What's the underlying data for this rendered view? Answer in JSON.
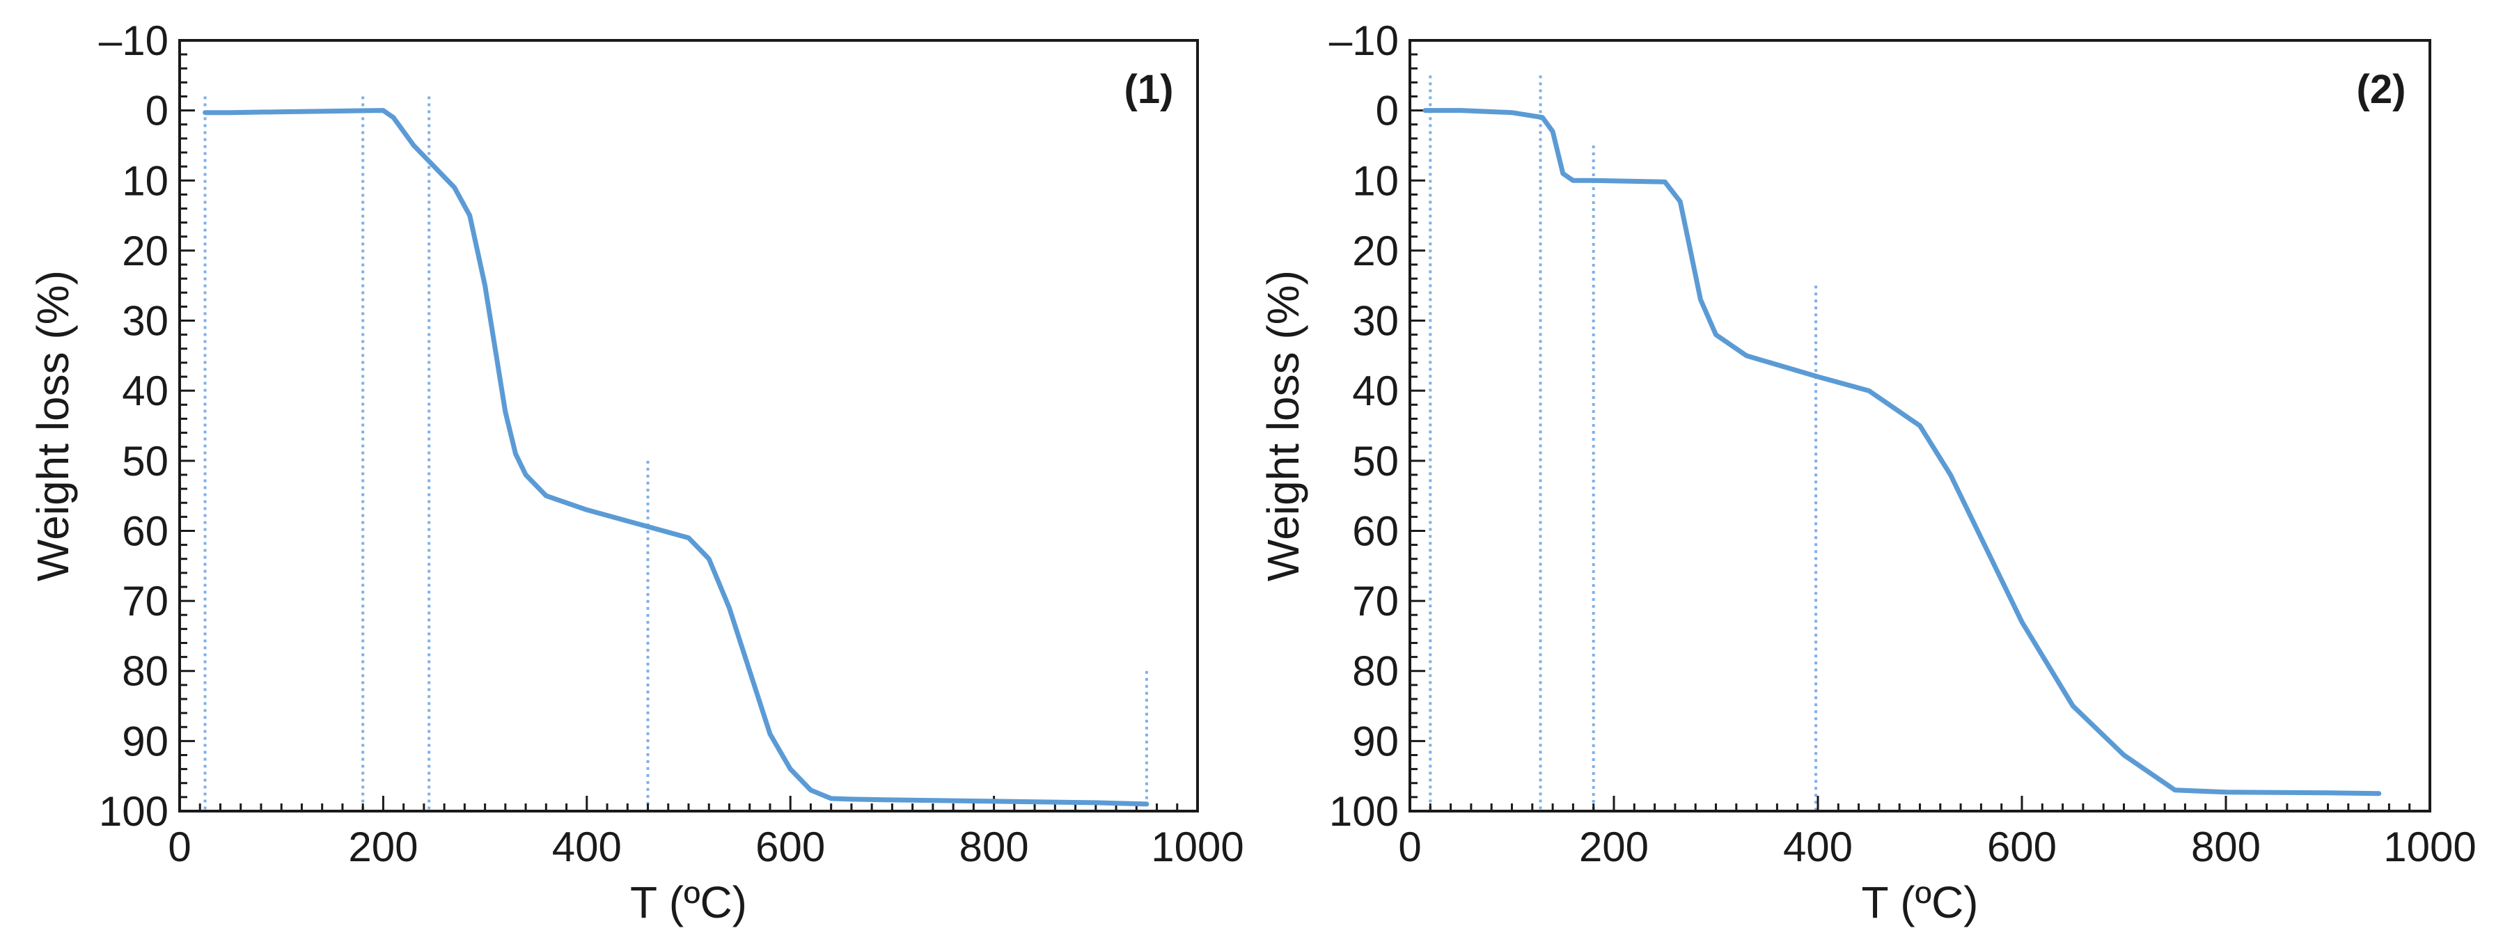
{
  "colors": {
    "line": "#5b9bd5",
    "marker": "#7fb0e6",
    "axis": "#1a1a1a",
    "background": "#ffffff"
  },
  "chart_data": [
    {
      "type": "line",
      "panel_label": "(1)",
      "xlabel": "T (ºC)",
      "ylabel": "Weight loss (%)",
      "xlim": [
        0,
        1000
      ],
      "ylim": [
        -10,
        100
      ],
      "y_inverted": true,
      "xticks": [
        0,
        200,
        400,
        600,
        800,
        1000
      ],
      "yticks": [
        -10,
        0,
        10,
        20,
        30,
        40,
        50,
        60,
        70,
        80,
        90,
        100
      ],
      "xtick_labels": [
        "0",
        "200",
        "400",
        "600",
        "800",
        "1000"
      ],
      "ytick_labels": [
        "–10",
        "0",
        "10",
        "20",
        "30",
        "40",
        "50",
        "60",
        "70",
        "80",
        "90",
        "100"
      ],
      "grid": false,
      "series": [
        {
          "x": [
            25,
            50,
            100,
            150,
            200,
            210,
            230,
            250,
            270,
            285,
            300,
            310,
            320,
            330,
            340,
            360,
            400,
            450,
            500,
            520,
            540,
            560,
            580,
            600,
            620,
            640,
            660,
            700,
            800,
            900,
            950
          ],
          "y": [
            0.3,
            0.3,
            0.2,
            0.1,
            0,
            1,
            5,
            8,
            11,
            15,
            25,
            34,
            43,
            49,
            52,
            55,
            57,
            59,
            61,
            64,
            71,
            80,
            89,
            94,
            97,
            98.2,
            98.3,
            98.4,
            98.6,
            98.8,
            99
          ]
        }
      ],
      "reference_lines": [
        {
          "x": 25,
          "y_top": -2
        },
        {
          "x": 180,
          "y_top": -2
        },
        {
          "x": 245,
          "y_top": -2
        },
        {
          "x": 460,
          "y_top": 50
        },
        {
          "x": 950,
          "y_top": 80
        }
      ]
    },
    {
      "type": "line",
      "panel_label": "(2)",
      "xlabel": "T (ºC)",
      "ylabel": "Weight loss (%)",
      "xlim": [
        0,
        1000
      ],
      "ylim": [
        -10,
        100
      ],
      "y_inverted": true,
      "xticks": [
        0,
        200,
        400,
        600,
        800,
        1000
      ],
      "yticks": [
        -10,
        0,
        10,
        20,
        30,
        40,
        50,
        60,
        70,
        80,
        90,
        100
      ],
      "xtick_labels": [
        "0",
        "200",
        "400",
        "600",
        "800",
        "1000"
      ],
      "ytick_labels": [
        "–10",
        "0",
        "10",
        "20",
        "30",
        "40",
        "50",
        "60",
        "70",
        "80",
        "90",
        "100"
      ],
      "grid": false,
      "series": [
        {
          "x": [
            15,
            50,
            100,
            130,
            140,
            150,
            160,
            180,
            250,
            265,
            275,
            285,
            300,
            330,
            400,
            450,
            500,
            530,
            560,
            600,
            650,
            700,
            750,
            800,
            900,
            950
          ],
          "y": [
            0,
            0,
            0.3,
            1,
            3,
            9,
            10,
            10,
            10.2,
            13,
            20,
            27,
            32,
            35,
            38,
            40,
            45,
            52,
            61,
            73,
            85,
            92,
            97,
            97.3,
            97.4,
            97.5
          ]
        }
      ],
      "reference_lines": [
        {
          "x": 20,
          "y_top": -5
        },
        {
          "x": 128,
          "y_top": -5
        },
        {
          "x": 180,
          "y_top": 5
        },
        {
          "x": 398,
          "y_top": 25
        }
      ]
    }
  ]
}
